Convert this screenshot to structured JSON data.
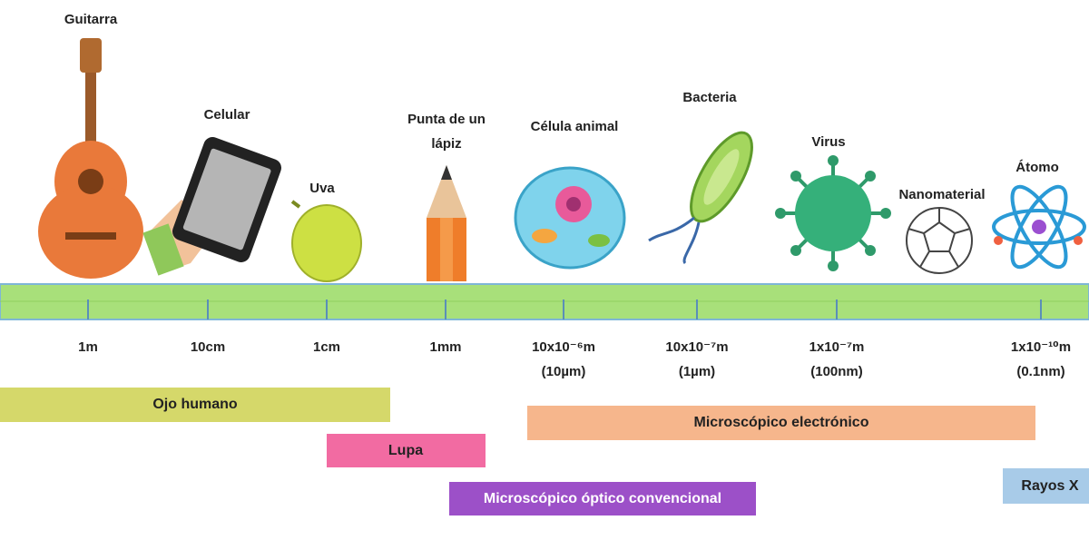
{
  "objects": [
    {
      "label_lines": [
        "Guitarra"
      ]
    },
    {
      "label_lines": [
        "Celular"
      ]
    },
    {
      "label_lines": [
        "Uva"
      ]
    },
    {
      "label_lines": [
        "Punta de un",
        "lápiz"
      ]
    },
    {
      "label_lines": [
        "Célula animal"
      ]
    },
    {
      "label_lines": [
        "Bacteria"
      ]
    },
    {
      "label_lines": [
        "Virus"
      ]
    },
    {
      "label_lines": [
        "Nanomaterial"
      ]
    },
    {
      "label_lines": [
        "Átomo"
      ]
    }
  ],
  "scale": [
    {
      "lines": [
        "1m"
      ]
    },
    {
      "lines": [
        "10cm"
      ]
    },
    {
      "lines": [
        "1cm"
      ]
    },
    {
      "lines": [
        "1mm"
      ]
    },
    {
      "lines": [
        "10x10⁻⁶m",
        "(10µm)"
      ]
    },
    {
      "lines": [
        "10x10⁻⁷m",
        "(1µm)"
      ]
    },
    {
      "lines": [
        "1x10⁻⁷m",
        "(100nm)"
      ]
    },
    {
      "lines": [
        "1x10⁻¹⁰m",
        "(0.1nm)"
      ]
    }
  ],
  "ranges": [
    {
      "label": "Ojo humano"
    },
    {
      "label": "Microscópico electrónico"
    },
    {
      "label": "Lupa"
    },
    {
      "label": "Microscópico óptico convencional"
    },
    {
      "label": "Rayos X"
    }
  ]
}
